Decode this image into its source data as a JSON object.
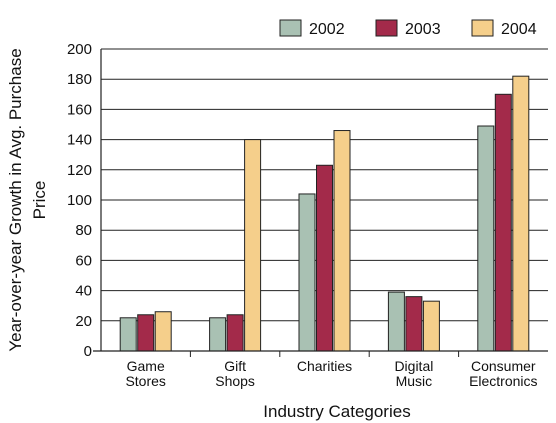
{
  "chart_data": {
    "type": "bar",
    "categories": [
      [
        "Game",
        "Stores"
      ],
      [
        "Gift",
        "Shops"
      ],
      [
        "Charities"
      ],
      [
        "Digital",
        "Music"
      ],
      [
        "Consumer",
        "Electronics"
      ]
    ],
    "series": [
      {
        "name": "2002",
        "color": "#a9c1b3",
        "values": [
          22,
          22,
          104,
          39,
          149
        ]
      },
      {
        "name": "2003",
        "color": "#a32a4a",
        "values": [
          24,
          24,
          123,
          36,
          170
        ]
      },
      {
        "name": "2004",
        "color": "#f5cf8b",
        "values": [
          26,
          140,
          146,
          33,
          182
        ]
      }
    ],
    "title": "",
    "xlabel": "Industry Categories",
    "ylabel": [
      "Year-over-year Growth in Avg. Purchase",
      "Price"
    ],
    "ylim": [
      0,
      200
    ],
    "yticks": [
      0,
      20,
      40,
      60,
      80,
      100,
      120,
      140,
      160,
      180,
      200
    ],
    "grid": "horizontal",
    "legend": "top-right"
  }
}
